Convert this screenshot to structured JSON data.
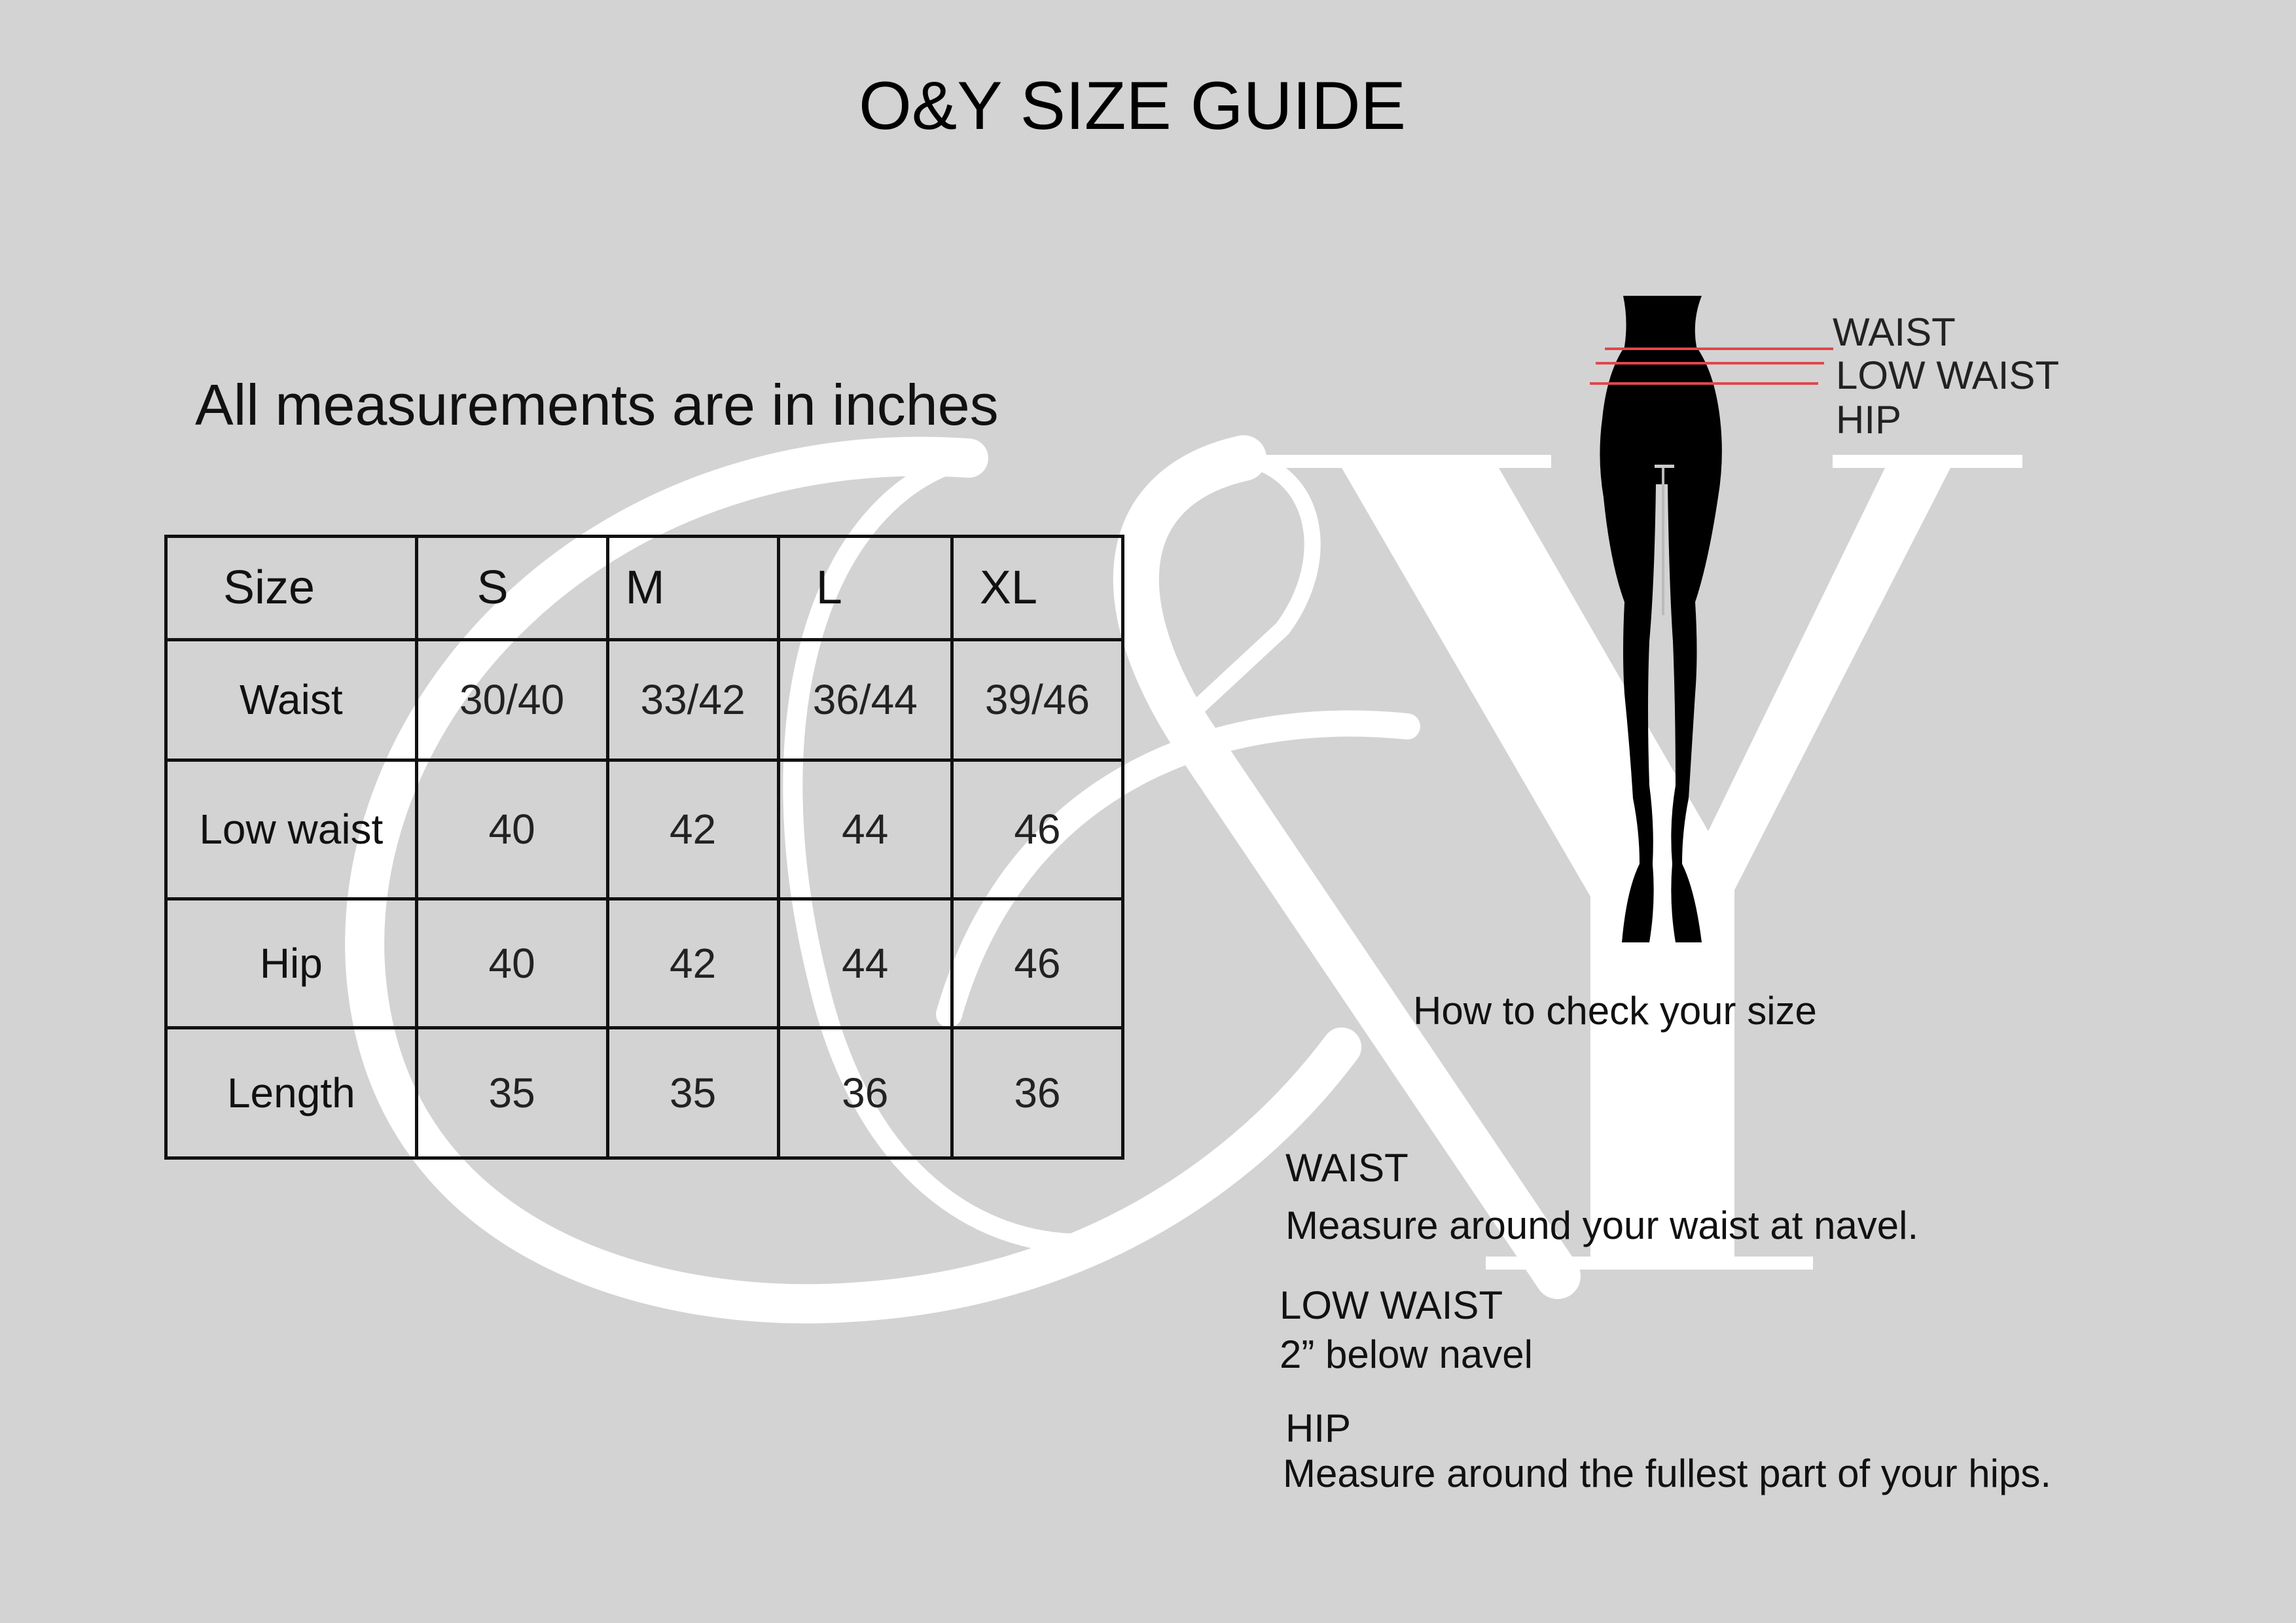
{
  "title": "O&Y SIZE GUIDE",
  "subtitle": "All measurements are in inches",
  "watermark": {
    "ampersand": "&",
    "y": "Y",
    "color": "#ffffff"
  },
  "table": {
    "header": [
      "Size",
      "S",
      "M",
      "L",
      "XL"
    ],
    "rows": [
      {
        "label": "Waist",
        "values": [
          "30/40",
          "33/42",
          "36/44",
          "39/46"
        ]
      },
      {
        "label": "Low waist",
        "values": [
          "40",
          "42",
          "44",
          "46"
        ]
      },
      {
        "label": "Hip",
        "values": [
          "40",
          "42",
          "44",
          "46"
        ]
      },
      {
        "label": "Length",
        "values": [
          "35",
          "35",
          "36",
          "36"
        ]
      }
    ]
  },
  "figure": {
    "labels": [
      "WAIST",
      "LOW WAIST",
      "HIP"
    ],
    "line_color": "#e0474c",
    "caption": "How to check your size"
  },
  "instructions": [
    {
      "heading": "WAIST",
      "text": "Measure around your waist at navel."
    },
    {
      "heading": "LOW WAIST",
      "text": "2” below navel"
    },
    {
      "heading": "HIP",
      "text": "Measure around the fullest part of your hips."
    }
  ]
}
